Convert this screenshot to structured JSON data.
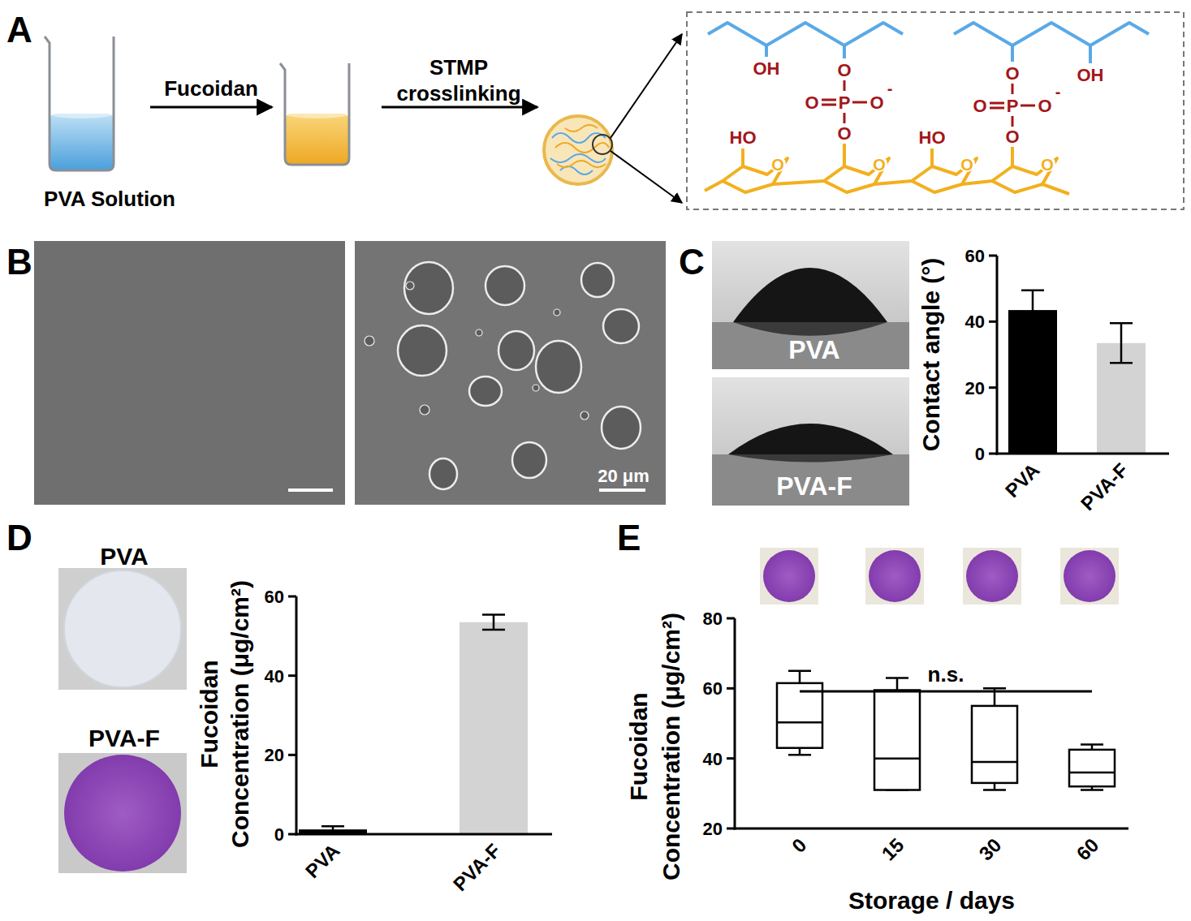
{
  "panel_labels": [
    "A",
    "B",
    "C",
    "D",
    "E"
  ],
  "scheme": {
    "start_label": "PVA Solution",
    "step1": "Fucoidan",
    "step2": [
      "STMP",
      "crosslinking"
    ],
    "structure": {
      "hydroxyl_right": "OH",
      "hydroxyl_left": "HO",
      "oxygen": "O",
      "phosphorus": "P",
      "charge": "-"
    }
  },
  "sem": {
    "scale_bar": "20 μm"
  },
  "droplet_images": [
    "PVA",
    "PVA-F"
  ],
  "disc_photos": [
    "PVA",
    "PVA-F"
  ],
  "chart_data": [
    {
      "type": "bar",
      "categories": [
        "PVA",
        "PVA-F"
      ],
      "values": [
        43.5,
        33.5
      ],
      "errors": [
        6,
        6
      ],
      "colors": [
        "#000000",
        "#d3d3d3"
      ],
      "y_label": [
        "Contact angle (°)"
      ],
      "ylim": [
        0,
        60
      ],
      "yticks": [
        0,
        20,
        40,
        60
      ]
    },
    {
      "type": "bar",
      "categories": [
        "PVA",
        "PVA-F"
      ],
      "values": [
        1.2,
        53.5
      ],
      "errors": [
        0.8,
        1.9
      ],
      "colors": [
        "#000000",
        "#d3d3d3"
      ],
      "y_label": [
        "Fucoidan",
        "Concentration (μg/cm²)"
      ],
      "ylim": [
        0,
        60
      ],
      "yticks": [
        0,
        20,
        40,
        60
      ]
    },
    {
      "type": "box",
      "categories": [
        "0",
        "15",
        "30",
        "60"
      ],
      "min": [
        41,
        31,
        31,
        31
      ],
      "q1": [
        43,
        31,
        33,
        32
      ],
      "median": [
        50.3,
        40,
        39,
        36
      ],
      "q3": [
        61.5,
        59.5,
        55,
        42.5
      ],
      "max": [
        65,
        63,
        60,
        44
      ],
      "color": "#000000",
      "x_label": "Storage / days",
      "y_label": [
        "Fucoidan",
        "Concentration (μg/cm²)"
      ],
      "annotation": "n.s.",
      "ylim": [
        20,
        80
      ],
      "yticks": [
        20,
        40,
        60,
        80
      ]
    }
  ]
}
